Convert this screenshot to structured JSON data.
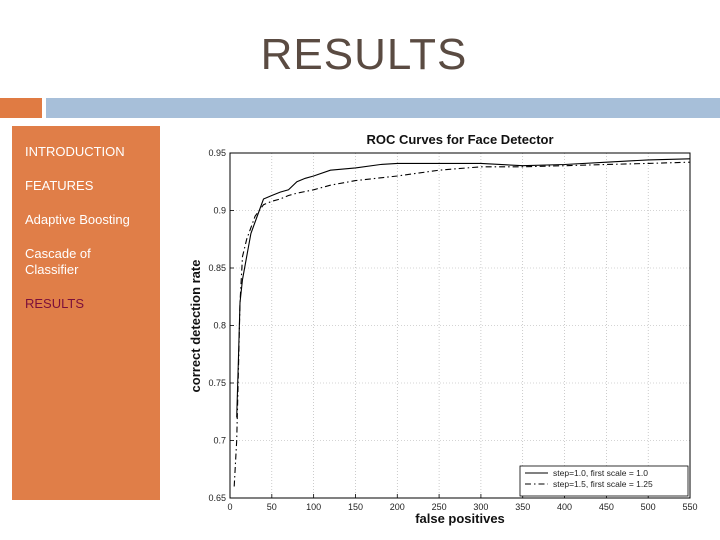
{
  "slide": {
    "title": "RESULTS"
  },
  "sidebar": {
    "items": [
      {
        "label": "INTRODUCTION",
        "active": false
      },
      {
        "label": "FEATURES",
        "active": false
      },
      {
        "label": "Adaptive Boosting",
        "active": false
      },
      {
        "label": "Cascade of Classifier",
        "active": false
      },
      {
        "label": "RESULTS",
        "active": true
      }
    ]
  },
  "colors": {
    "accent_orange": "#e07b43",
    "accent_blue": "#a7bfd9",
    "active_nav": "#7a0f3b",
    "title": "#5a4b42"
  },
  "chart_data": {
    "type": "line",
    "title": "ROC Curves for Face Detector",
    "xlabel": "false positives",
    "ylabel": "correct detection rate",
    "xlim": [
      0,
      550
    ],
    "ylim": [
      0.65,
      0.95
    ],
    "xticks": [
      "0",
      "50",
      "100",
      "150",
      "200",
      "250",
      "300",
      "350",
      "400",
      "450",
      "500",
      "550"
    ],
    "yticks": [
      "0.65",
      "0.7",
      "0.75",
      "0.8",
      "0.85",
      "0.9",
      "0.95"
    ],
    "grid": true,
    "legend_position": "bottom-right",
    "series": [
      {
        "name": "step=1.0, first scale = 1.0",
        "style": "solid",
        "x": [
          8,
          10,
          12,
          15,
          20,
          25,
          30,
          35,
          40,
          50,
          60,
          70,
          80,
          90,
          100,
          120,
          150,
          180,
          200,
          250,
          300,
          350,
          400,
          450,
          500,
          550
        ],
        "y": [
          0.72,
          0.77,
          0.82,
          0.84,
          0.86,
          0.88,
          0.89,
          0.9,
          0.91,
          0.913,
          0.916,
          0.918,
          0.925,
          0.928,
          0.93,
          0.935,
          0.937,
          0.94,
          0.941,
          0.941,
          0.941,
          0.939,
          0.94,
          0.942,
          0.944,
          0.945
        ]
      },
      {
        "name": "step=1.5, first scale = 1.25",
        "style": "dash-dot",
        "x": [
          5,
          8,
          10,
          12,
          15,
          20,
          25,
          30,
          35,
          40,
          50,
          60,
          70,
          80,
          100,
          120,
          150,
          200,
          250,
          300,
          350,
          400,
          450,
          500,
          550
        ],
        "y": [
          0.66,
          0.7,
          0.76,
          0.82,
          0.86,
          0.875,
          0.885,
          0.895,
          0.9,
          0.905,
          0.908,
          0.91,
          0.913,
          0.915,
          0.918,
          0.922,
          0.926,
          0.93,
          0.935,
          0.938,
          0.938,
          0.939,
          0.94,
          0.941,
          0.942
        ]
      }
    ]
  }
}
